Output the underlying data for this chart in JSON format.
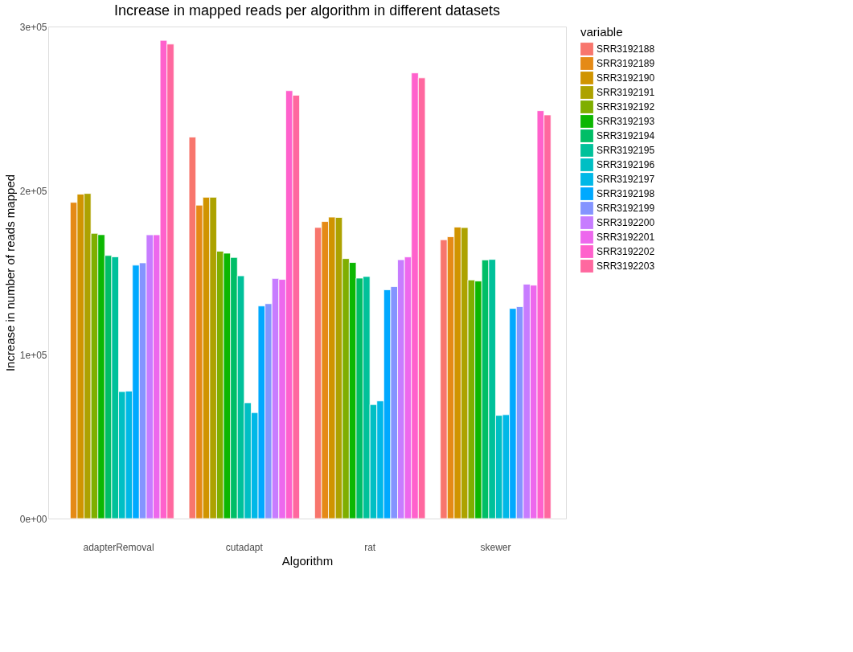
{
  "chart_data": {
    "type": "bar",
    "title": "Increase in mapped reads per algorithm in different datasets",
    "xlabel": "Algorithm",
    "ylabel": "Increase in number of reads mapped",
    "legend_title": "variable",
    "categories": [
      "adapterRemoval",
      "cutadapt",
      "rat",
      "skewer"
    ],
    "ylim": [
      0,
      300000
    ],
    "yticks": [
      {
        "value": 0,
        "label": "0e+00"
      },
      {
        "value": 100000,
        "label": "1e+05"
      },
      {
        "value": 200000,
        "label": "2e+05"
      },
      {
        "value": 300000,
        "label": "3e+05"
      }
    ],
    "grid": false,
    "legend": "right",
    "series": [
      {
        "name": "SRR3192188",
        "color": "#f8766d",
        "values": [
          null,
          232600,
          177500,
          170000
        ]
      },
      {
        "name": "SRR3192189",
        "color": "#e58a16",
        "values": [
          192800,
          191100,
          181100,
          171800
        ]
      },
      {
        "name": "SRR3192190",
        "color": "#d09400",
        "values": [
          197800,
          195900,
          183800,
          177700
        ]
      },
      {
        "name": "SRR3192191",
        "color": "#ada200",
        "values": [
          198200,
          195900,
          183600,
          177400
        ]
      },
      {
        "name": "SRR3192192",
        "color": "#7fae00",
        "values": [
          173900,
          163000,
          158500,
          145500
        ]
      },
      {
        "name": "SRR3192193",
        "color": "#0cb702",
        "values": [
          173100,
          161800,
          156100,
          144800
        ]
      },
      {
        "name": "SRR3192194",
        "color": "#00be67",
        "values": [
          160400,
          159200,
          146600,
          157700
        ]
      },
      {
        "name": "SRR3192195",
        "color": "#00c19a",
        "values": [
          159600,
          148000,
          147600,
          158000
        ]
      },
      {
        "name": "SRR3192196",
        "color": "#00bfc4",
        "values": [
          77400,
          70600,
          69500,
          62900
        ]
      },
      {
        "name": "SRR3192197",
        "color": "#00b8e7",
        "values": [
          77700,
          64600,
          71700,
          63300
        ]
      },
      {
        "name": "SRR3192198",
        "color": "#00a9ff",
        "values": [
          154500,
          129600,
          139500,
          128100
        ]
      },
      {
        "name": "SRR3192199",
        "color": "#8494ff",
        "values": [
          155900,
          131000,
          141400,
          129200
        ]
      },
      {
        "name": "SRR3192200",
        "color": "#c77cff",
        "values": [
          173000,
          146400,
          157800,
          142900
        ]
      },
      {
        "name": "SRR3192201",
        "color": "#ed68ed",
        "values": [
          173000,
          145800,
          159500,
          142300
        ]
      },
      {
        "name": "SRR3192202",
        "color": "#ff61cc",
        "values": [
          291600,
          260900,
          271700,
          248700
        ]
      },
      {
        "name": "SRR3192203",
        "color": "#ff689f",
        "values": [
          289300,
          258100,
          268700,
          246100
        ]
      }
    ]
  }
}
